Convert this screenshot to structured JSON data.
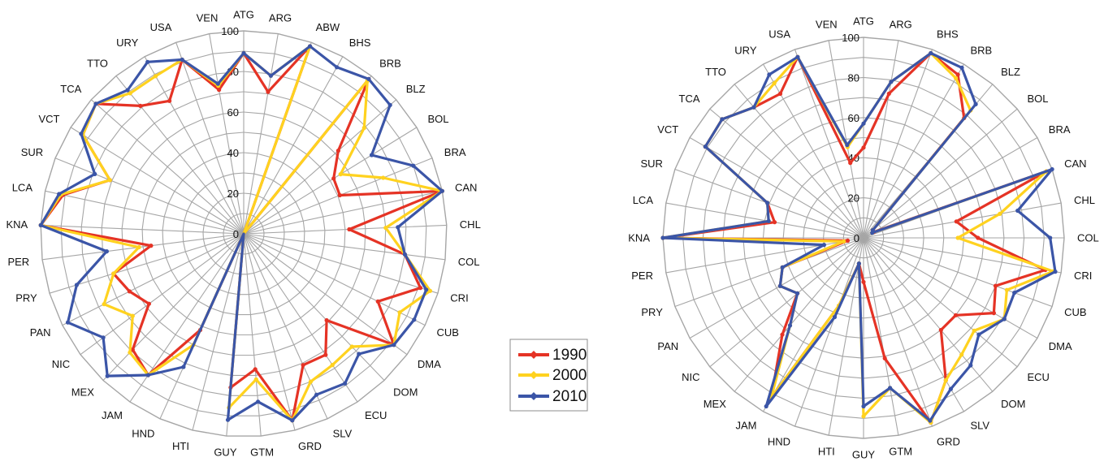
{
  "colors": {
    "1990": "#e53325",
    "2000": "#ffd21f",
    "2010": "#3b55a7",
    "grid": "#a6a6a6"
  },
  "legend": {
    "items": [
      "1990",
      "2000",
      "2010"
    ]
  },
  "chart_data": [
    {
      "type": "radar",
      "rlim": [
        0,
        100
      ],
      "rticks": [
        "0",
        "20",
        "40",
        "60",
        "80",
        "100"
      ],
      "grid": true,
      "categories": [
        "ATG",
        "ARG",
        "ABW",
        "BHS",
        "BRB",
        "BLZ",
        "BOL",
        "BRA",
        "CAN",
        "CHL",
        "COL",
        "CRI",
        "CUB",
        "DMA",
        "DOM",
        "ECU",
        "SLV",
        "GRD",
        "GTM",
        "GUY",
        "HTI",
        "HND",
        "JAM",
        "MEX",
        "NIC",
        "PAN",
        "PRY",
        "PER",
        "KNA",
        "LCA",
        "SUR",
        "VCT",
        "TCA",
        "TTO",
        "URY",
        "USA",
        "VEN"
      ],
      "series": [
        {
          "name": "1990",
          "values": [
            89,
            71,
            98,
            null,
            98,
            62,
            52,
            51,
            100,
            52,
            80,
            91,
            74,
            92,
            59,
            72,
            71,
            95,
            67,
            76,
            null,
            52,
            84,
            79,
            58,
            63,
            67,
            46,
            100,
            91,
            71,
            93,
            97,
            81,
            75,
            91,
            72
          ]
        },
        {
          "name": "2000",
          "values": [
            89,
            79,
            98,
            null,
            97,
            79,
            56,
            74,
            100,
            70,
            80,
            96,
            86,
            92,
            77,
            78,
            80,
            95,
            72,
            86,
            null,
            60,
            84,
            81,
            68,
            77,
            67,
            52,
            100,
            92,
            71,
            93,
            97,
            89,
            89,
            91,
            74
          ]
        },
        {
          "name": "2010",
          "values": [
            89,
            79,
            98,
            94,
            98,
            96,
            74,
            90,
            100,
            76,
            80,
            94,
            94,
            92,
            82,
            89,
            87,
            95,
            83,
            92,
            null,
            72,
            84,
            97,
            86,
            97,
            86,
            68,
            100,
            93,
            79,
            94,
            97,
            91,
            97,
            91,
            75
          ]
        }
      ]
    },
    {
      "type": "radar",
      "rlim": [
        0,
        100
      ],
      "rticks": [
        "0",
        "20",
        "40",
        "60",
        "80",
        "100"
      ],
      "grid": true,
      "categories": [
        "ATG",
        "ARG",
        "BHS",
        "BRB",
        "BLZ",
        "BOL",
        "BRA",
        "CAN",
        "CHL",
        "COL",
        "CRI",
        "CUB",
        "DMA",
        "ECU",
        "DOM",
        "SLV",
        "GRD",
        "GTM",
        "GUY",
        "HTI",
        "HND",
        "JAM",
        "MEX",
        "NIC",
        "PAN",
        "PRY",
        "PER",
        "KNA",
        "LCA",
        "SUR",
        "VCT",
        "TCA",
        "TTO",
        "URY",
        "USA",
        "VEN"
      ],
      "series": [
        {
          "name": "1990",
          "values": [
            45,
            73,
            98,
            94,
            78,
            6,
            6,
            97,
            47,
            57,
            92,
            70,
            75,
            60,
            60,
            82,
            98,
            61,
            22,
            13,
            36,
            92,
            63,
            43,
            48,
            43,
            8,
            100,
            45,
            51,
            91,
            92,
            85,
            83,
            96,
            38
          ]
        },
        {
          "name": "2000",
          "values": [
            57,
            79,
            98,
            92,
            83,
            6,
            5,
            97,
            69,
            47,
            96,
            76,
            81,
            72,
            76,
            82,
            98,
            76,
            89,
            13,
            36,
            92,
            57,
            43,
            48,
            43,
            10,
            100,
            48,
            51,
            91,
            92,
            85,
            89,
            96,
            46
          ]
        },
        {
          "name": "2010",
          "values": [
            57,
            79,
            98,
            98,
            87,
            6,
            5,
            100,
            78,
            93,
            97,
            80,
            81,
            75,
            83,
            87,
            97,
            76,
            84,
            13,
            42,
            97,
            57,
            43,
            48,
            43,
            20,
            100,
            48,
            51,
            91,
            92,
            85,
            94,
            96,
            47
          ]
        }
      ]
    }
  ]
}
